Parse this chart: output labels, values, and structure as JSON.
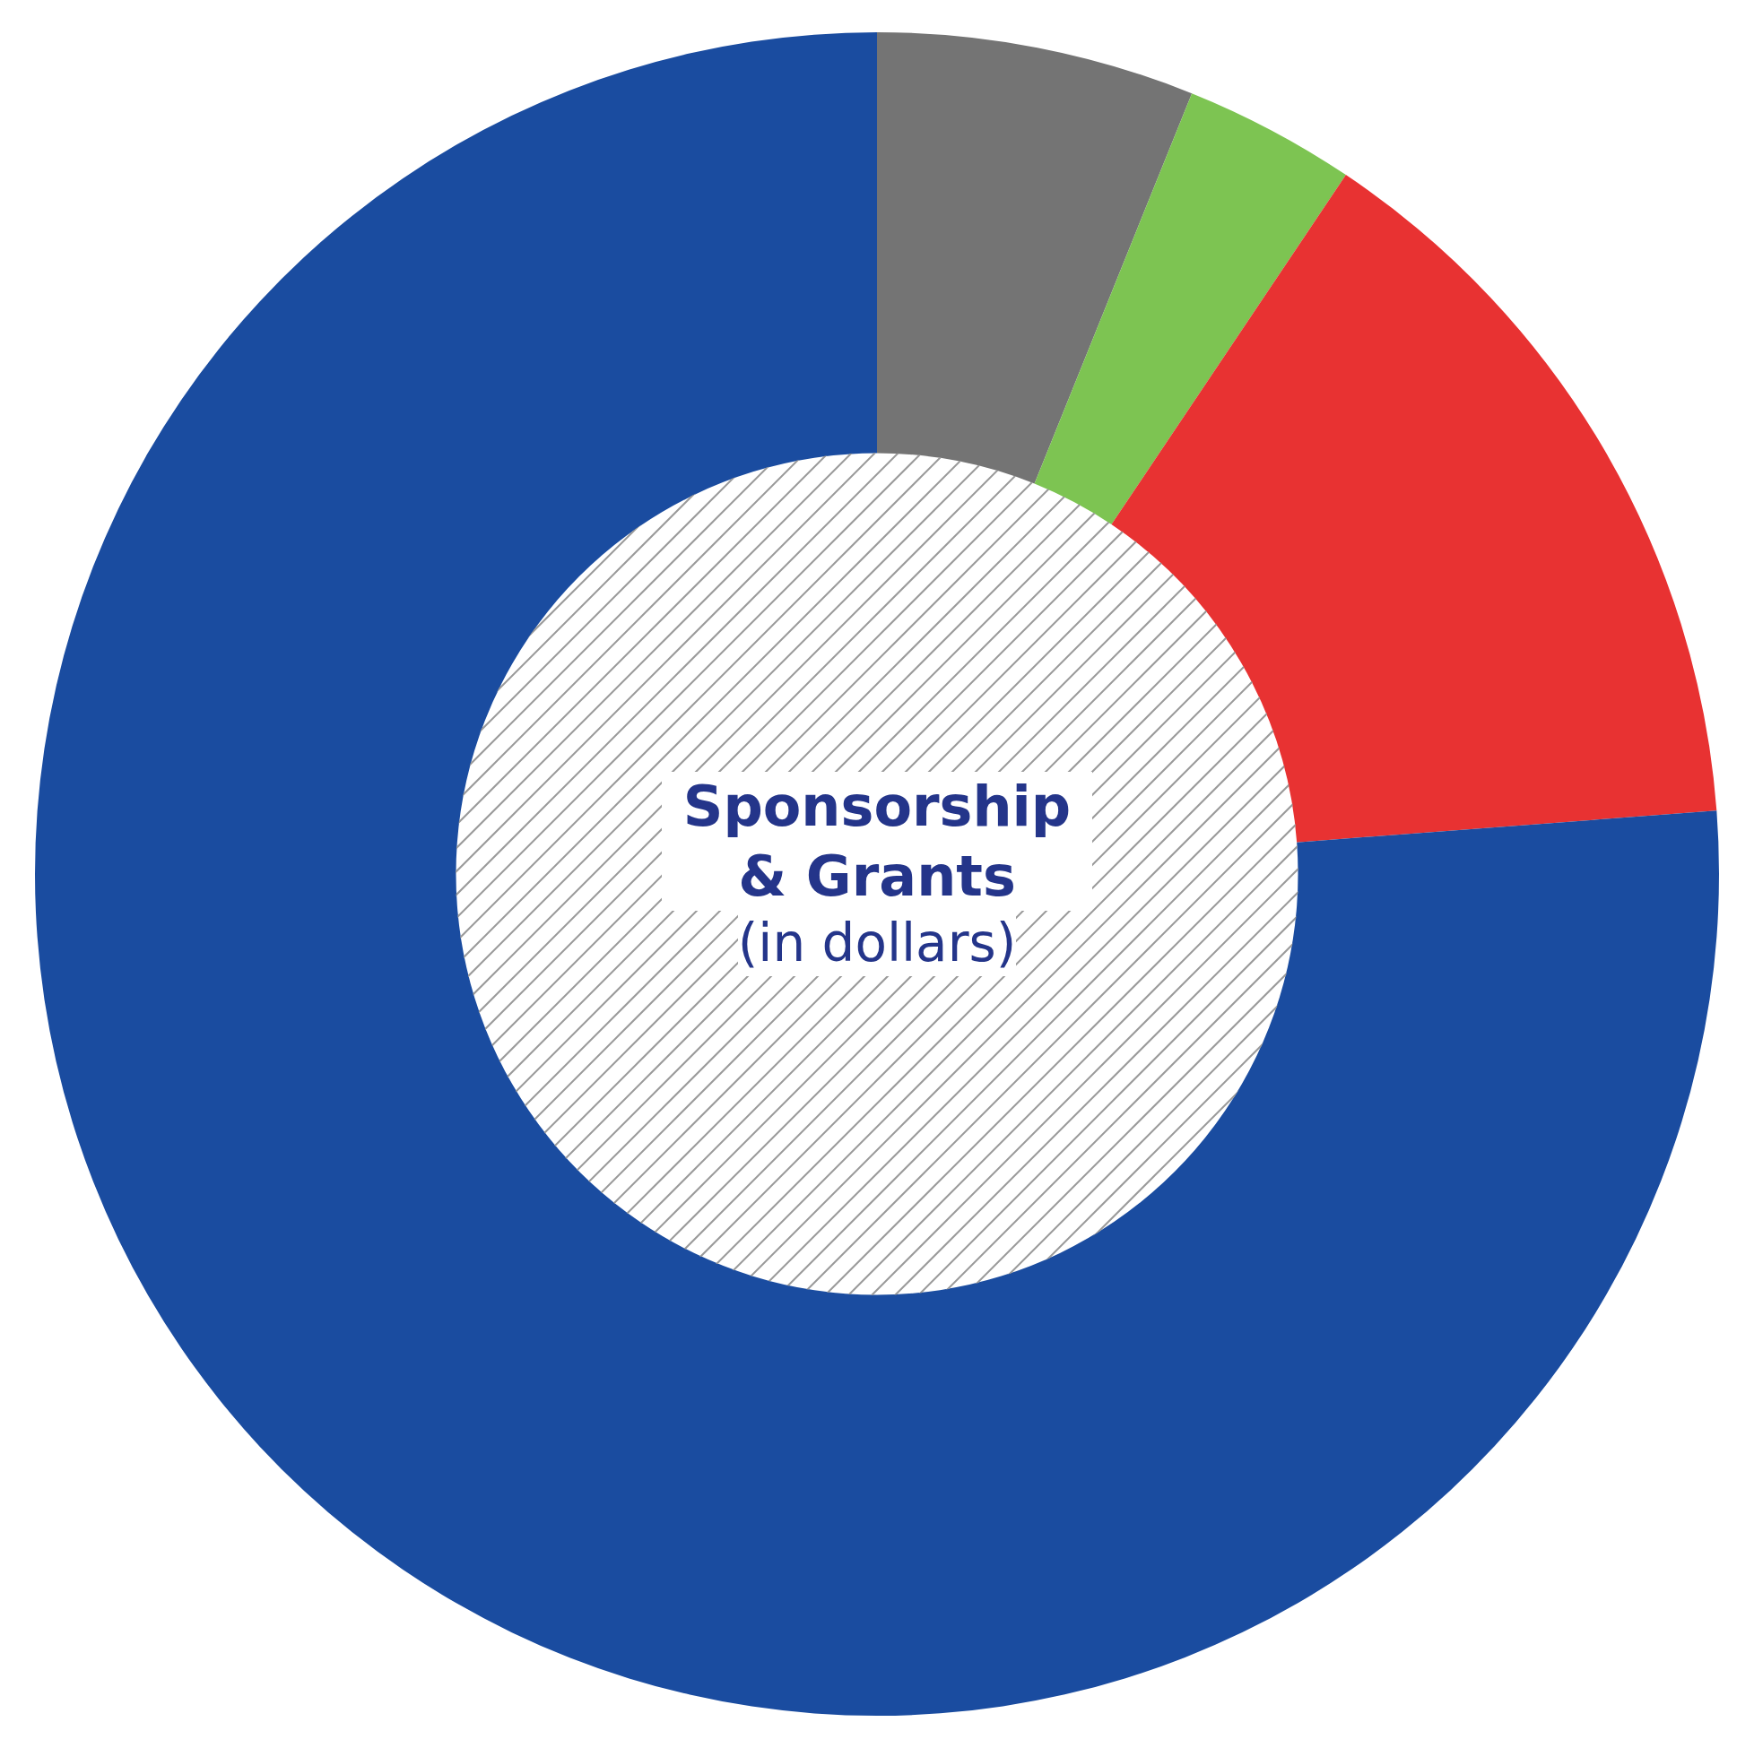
{
  "chart_data": {
    "type": "donut",
    "title": "Sponsorship & Grants",
    "subtitle": "(in dollars)",
    "categories": [
      null,
      null,
      null,
      null
    ],
    "values": [
      6.1,
      3.3,
      14.4,
      76.2
    ],
    "colors": [
      "#747474",
      "#7dc452",
      "#e83232",
      "#1a4ca0"
    ],
    "legend": false
  }
}
